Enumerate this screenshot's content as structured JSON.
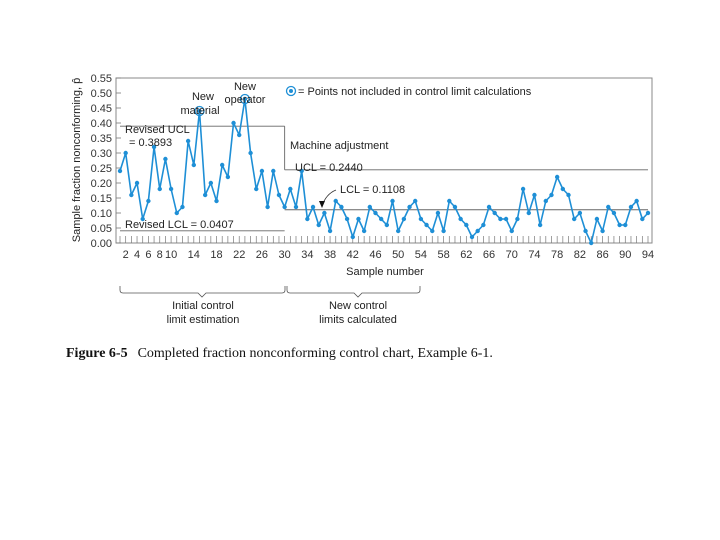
{
  "chart_data": {
    "type": "line",
    "xlabel": "Sample number",
    "ylabel": "Sample fraction nonconforming, p̂",
    "xlim": [
      1,
      94
    ],
    "ylim": [
      0,
      0.55
    ],
    "x_ticks": [
      2,
      4,
      6,
      8,
      10,
      14,
      18,
      22,
      26,
      30,
      34,
      38,
      42,
      46,
      50,
      54,
      58,
      62,
      66,
      70,
      74,
      78,
      82,
      86,
      90,
      94
    ],
    "x_tick_labels": [
      "2",
      "4",
      "6",
      "8",
      "10",
      "14",
      "18",
      "22",
      "26",
      "30",
      "34",
      "38",
      "42",
      "46",
      "50",
      "54",
      "58",
      "62",
      "66",
      "70",
      "74",
      "78",
      "82",
      "86",
      "90",
      "94"
    ],
    "y_ticks": [
      0.0,
      0.05,
      0.1,
      0.15,
      0.2,
      0.25,
      0.3,
      0.35,
      0.4,
      0.45,
      0.5,
      0.55
    ],
    "y_tick_labels": [
      "0.00",
      "0.05",
      "0.10",
      "0.15",
      "0.20",
      "0.25",
      "0.30",
      "0.35",
      "0.40",
      "0.45",
      "0.50",
      "0.55"
    ],
    "grid": false,
    "series": [
      {
        "color": "#1e8fd6",
        "x": [
          1,
          2,
          3,
          4,
          5,
          6,
          7,
          8,
          9,
          10,
          11,
          12,
          13,
          14,
          15,
          16,
          17,
          18,
          19,
          20,
          21,
          22,
          23,
          24,
          25,
          26,
          27,
          28,
          29,
          30,
          31,
          32,
          33,
          34,
          35,
          36,
          37,
          38,
          39,
          40,
          41,
          42,
          43,
          44,
          45,
          46,
          47,
          48,
          49,
          50,
          51,
          52,
          53,
          54,
          55,
          56,
          57,
          58,
          59,
          60,
          61,
          62,
          63,
          64,
          65,
          66,
          67,
          68,
          69,
          70,
          71,
          72,
          73,
          74,
          75,
          76,
          77,
          78,
          79,
          80,
          81,
          82,
          83,
          84,
          85,
          86,
          87,
          88,
          89,
          90,
          91,
          92,
          93,
          94
        ],
        "y": [
          0.24,
          0.3,
          0.16,
          0.2,
          0.08,
          0.14,
          0.32,
          0.18,
          0.28,
          0.18,
          0.1,
          0.12,
          0.34,
          0.26,
          0.44,
          0.16,
          0.2,
          0.14,
          0.26,
          0.22,
          0.4,
          0.36,
          0.48,
          0.3,
          0.18,
          0.24,
          0.12,
          0.24,
          0.16,
          0.12,
          0.18,
          0.12,
          0.24,
          0.08,
          0.12,
          0.06,
          0.1,
          0.04,
          0.14,
          0.12,
          0.08,
          0.02,
          0.08,
          0.04,
          0.12,
          0.1,
          0.08,
          0.06,
          0.14,
          0.04,
          0.08,
          0.12,
          0.14,
          0.08,
          0.06,
          0.04,
          0.1,
          0.04,
          0.14,
          0.12,
          0.08,
          0.06,
          0.02,
          0.04,
          0.06,
          0.12,
          0.1,
          0.08,
          0.08,
          0.04,
          0.08,
          0.18,
          0.1,
          0.16,
          0.06,
          0.14,
          0.16,
          0.22,
          0.18,
          0.16,
          0.08,
          0.1,
          0.04,
          0.0,
          0.08,
          0.04,
          0.12,
          0.1,
          0.06,
          0.06,
          0.12,
          0.14,
          0.08,
          0.1
        ]
      }
    ],
    "excluded_points": [
      {
        "x": 15,
        "y": 0.44
      },
      {
        "x": 23,
        "y": 0.48
      }
    ],
    "reference_lines": [
      {
        "y": 0.3893,
        "x_start": 1,
        "x_end": 30,
        "label": "Revised UCL = 0.3893"
      },
      {
        "y": 0.0407,
        "x_start": 1,
        "x_end": 30,
        "label": "Revised LCL = 0.0407"
      },
      {
        "y": 0.244,
        "x_start": 30,
        "x_end": 94,
        "label": "UCL = 0.2440"
      },
      {
        "y": 0.1108,
        "x_start": 30,
        "x_end": 94,
        "label": "LCL = 0.1108"
      }
    ],
    "annotations": {
      "legend_text": "= Points not included in control limit calculations",
      "new_material": [
        "New",
        "material"
      ],
      "new_operator": [
        "New",
        "operator"
      ],
      "machine_adjustment": "Machine adjustment",
      "revised_ucl": [
        "Revised UCL",
        "= 0.3893"
      ],
      "revised_lcl": "Revised LCL = 0.0407",
      "ucl": "UCL = 0.2440",
      "lcl": "LCL = 0.1108",
      "initial_control": [
        "Initial control",
        "limit estimation"
      ],
      "new_control": [
        "New control",
        "limits calculated"
      ]
    }
  },
  "caption": {
    "figure_number": "Figure 6-5",
    "text": "Completed fraction nonconforming control chart, Example 6-1."
  }
}
